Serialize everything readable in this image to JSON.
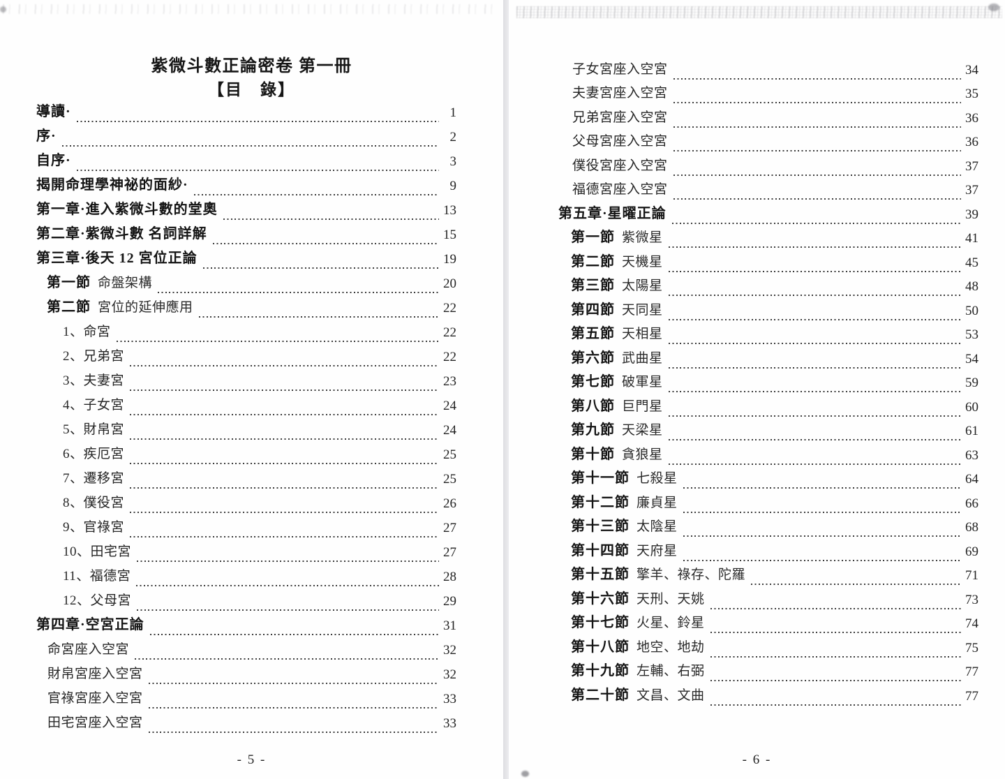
{
  "left": {
    "title": "紫微斗數正論密卷 第一冊",
    "toc_heading": "【目　錄】",
    "footer": "- 5 -",
    "entries": [
      {
        "style": "chapter",
        "text": "導讀·",
        "page": "1"
      },
      {
        "style": "chapter",
        "text": "序·",
        "page": "2"
      },
      {
        "style": "chapter",
        "text": "自序·",
        "page": "3"
      },
      {
        "style": "chapter",
        "text": "揭開命理學神祕的面紗·",
        "page": "9"
      },
      {
        "style": "chapter",
        "text": "第一章·進入紫微斗數的堂奧",
        "page": "13"
      },
      {
        "style": "chapter",
        "text": "第二章·紫微斗數 名詞詳解",
        "page": "15"
      },
      {
        "style": "chapter",
        "text": "第三章·後天 12 宮位正論",
        "page": "19"
      },
      {
        "style": "section",
        "bold": "第一節",
        "text": "命盤架構",
        "page": "20"
      },
      {
        "style": "section",
        "bold": "第二節",
        "text": "宮位的延伸應用",
        "page": "22"
      },
      {
        "style": "item",
        "text": "1、命宮",
        "page": "22"
      },
      {
        "style": "item",
        "text": "2、兄弟宮",
        "page": "22"
      },
      {
        "style": "item",
        "text": "3、夫妻宮",
        "page": "23"
      },
      {
        "style": "item",
        "text": "4、子女宮",
        "page": "24"
      },
      {
        "style": "item",
        "text": "5、財帛宮",
        "page": "24"
      },
      {
        "style": "item",
        "text": "6、疾厄宮",
        "page": "25"
      },
      {
        "style": "item",
        "text": "7、遷移宮",
        "page": "25"
      },
      {
        "style": "item",
        "text": "8、僕役宮",
        "page": "26"
      },
      {
        "style": "item",
        "text": "9、官祿宮",
        "page": "27"
      },
      {
        "style": "item",
        "text": "10、田宅宮",
        "page": "27"
      },
      {
        "style": "item",
        "text": "11、福德宮",
        "page": "28"
      },
      {
        "style": "item",
        "text": "12、父母宮",
        "page": "29"
      },
      {
        "style": "chapter",
        "text": "第四章·空宮正論",
        "page": "31"
      },
      {
        "style": "sub",
        "text": "命宮座入空宮",
        "page": "32"
      },
      {
        "style": "sub",
        "text": "財帛宮座入空宮",
        "page": "32"
      },
      {
        "style": "sub",
        "text": "官祿宮座入空宮",
        "page": "33"
      },
      {
        "style": "sub",
        "text": "田宅宮座入空宮",
        "page": "33"
      }
    ]
  },
  "right": {
    "footer": "- 6 -",
    "entries": [
      {
        "style": "sub",
        "text": "子女宮座入空宮",
        "page": "34"
      },
      {
        "style": "sub",
        "text": "夫妻宮座入空宮",
        "page": "35"
      },
      {
        "style": "sub",
        "text": "兄弟宮座入空宮",
        "page": "36"
      },
      {
        "style": "sub",
        "text": "父母宮座入空宮",
        "page": "36"
      },
      {
        "style": "sub",
        "text": "僕役宮座入空宮",
        "page": "37"
      },
      {
        "style": "sub",
        "text": "福德宮座入空宮",
        "page": "37"
      },
      {
        "style": "chapter",
        "text": "第五章·星曜正論",
        "page": "39"
      },
      {
        "style": "section",
        "bold": "第一節",
        "text": "紫微星",
        "page": "41"
      },
      {
        "style": "section",
        "bold": "第二節",
        "text": "天機星",
        "page": "45"
      },
      {
        "style": "section",
        "bold": "第三節",
        "text": "太陽星",
        "page": "48"
      },
      {
        "style": "section",
        "bold": "第四節",
        "text": "天同星",
        "page": "50"
      },
      {
        "style": "section",
        "bold": "第五節",
        "text": "天相星",
        "page": "53"
      },
      {
        "style": "section",
        "bold": "第六節",
        "text": "武曲星",
        "page": "54"
      },
      {
        "style": "section",
        "bold": "第七節",
        "text": "破軍星",
        "page": "59"
      },
      {
        "style": "section",
        "bold": "第八節",
        "text": "巨門星",
        "page": "60"
      },
      {
        "style": "section",
        "bold": "第九節",
        "text": "天梁星",
        "page": "61"
      },
      {
        "style": "section",
        "bold": "第十節",
        "text": "貪狼星",
        "page": "63"
      },
      {
        "style": "section",
        "bold": "第十一節",
        "text": "七殺星",
        "page": "64"
      },
      {
        "style": "section",
        "bold": "第十二節",
        "text": "廉貞星",
        "page": "66"
      },
      {
        "style": "section",
        "bold": "第十三節",
        "text": "太陰星",
        "page": "68"
      },
      {
        "style": "section",
        "bold": "第十四節",
        "text": "天府星",
        "page": "69"
      },
      {
        "style": "section",
        "bold": "第十五節",
        "text": "擎羊、祿存、陀羅",
        "page": "71"
      },
      {
        "style": "section",
        "bold": "第十六節",
        "text": "天刑、天姚",
        "page": "73"
      },
      {
        "style": "section",
        "bold": "第十七節",
        "text": "火星、鈴星",
        "page": "74"
      },
      {
        "style": "section",
        "bold": "第十八節",
        "text": "地空、地劫",
        "page": "75"
      },
      {
        "style": "section",
        "bold": "第十九節",
        "text": "左輔、右弼",
        "page": "77"
      },
      {
        "style": "section",
        "bold": "第二十節",
        "text": "文昌、文曲",
        "page": "77"
      }
    ]
  },
  "colors": {
    "paper": "#fefefe",
    "ink": "#1f1f1f",
    "gutter": "#e6e6e9",
    "leader_dots": "#3b3b3b"
  }
}
